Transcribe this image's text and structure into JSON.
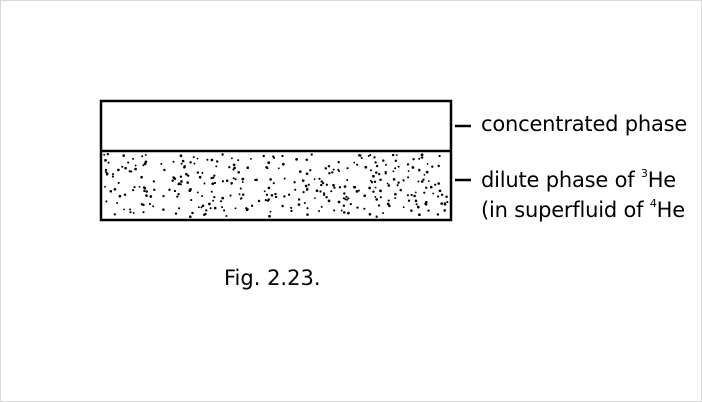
{
  "diagram": {
    "top_phase_label": "concentrated phase",
    "bottom_phase_line1_prefix": "dilute phase of ",
    "bottom_phase_line1_sup": "3",
    "bottom_phase_line1_suffix": "He",
    "bottom_phase_line2_prefix": "(in superfluid of ",
    "bottom_phase_line2_sup": "4",
    "bottom_phase_line2_suffix": "He",
    "caption": "Fig. 2.23.",
    "stroke_color": "#000000",
    "frame_color": "#d8d8d8"
  }
}
